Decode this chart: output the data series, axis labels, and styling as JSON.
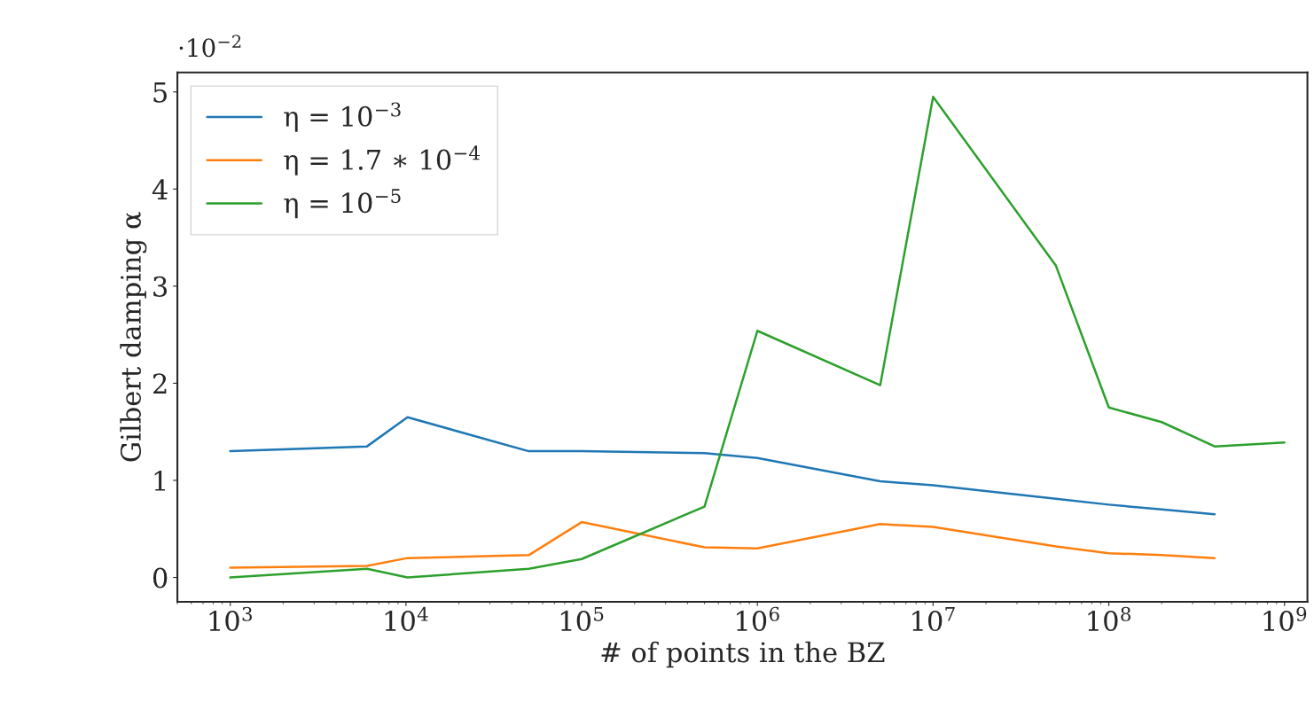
{
  "chart_data": {
    "type": "line",
    "xlabel": "# of points in the BZ",
    "ylabel": "Gilbert damping α",
    "annotations": [
      "·10$^{−2}$"
    ],
    "log": "x",
    "xlim": [
      500,
      1350000000
    ],
    "ylim": [
      -0.25,
      5.2
    ],
    "xticks": [
      {
        "value": 1000,
        "label": "10$^{3}$"
      },
      {
        "value": 10000,
        "label": "10$^{4}$"
      },
      {
        "value": 100000,
        "label": "10$^{5}$"
      },
      {
        "value": 1000000,
        "label": "10$^{6}$"
      },
      {
        "value": 10000000,
        "label": "10$^{7}$"
      },
      {
        "value": 100000000,
        "label": "10$^{8}$"
      },
      {
        "value": 1000000000,
        "label": "10$^{9}$"
      }
    ],
    "yticks": [
      0,
      1,
      2,
      3,
      4,
      5
    ],
    "grid": false,
    "legend": "top left",
    "marker": "none",
    "line_style": "solid",
    "series": [
      {
        "name": "η = 10$^{−3}$",
        "color": "#1f77b4",
        "x": [
          1000,
          6000,
          10200,
          50000,
          100000,
          500000,
          1000000,
          5000000,
          10000000,
          50000000,
          100000000,
          200000000,
          400000000
        ],
        "values": [
          1.3,
          1.35,
          1.65,
          1.3,
          1.3,
          1.28,
          1.23,
          0.99,
          0.95,
          0.81,
          0.75,
          0.7,
          0.65
        ]
      },
      {
        "name": "η = 1.7 ∗ 10$^{−4}$",
        "color": "#ff7f0e",
        "x": [
          1000,
          6000,
          10200,
          50000,
          100000,
          500000,
          1000000,
          5000000,
          10000000,
          50000000,
          100000000,
          200000000,
          400000000
        ],
        "values": [
          0.1,
          0.12,
          0.2,
          0.23,
          0.57,
          0.31,
          0.3,
          0.55,
          0.52,
          0.32,
          0.25,
          0.23,
          0.2
        ]
      },
      {
        "name": "η = 10$^{−5}$",
        "color": "#2ca02c",
        "x": [
          1000,
          6000,
          10200,
          50000,
          100000,
          500000,
          1000000,
          5000000,
          10000000,
          50000000,
          100000000,
          200000000,
          400000000,
          1000000000
        ],
        "values": [
          0.0,
          0.09,
          0.0,
          0.09,
          0.19,
          0.73,
          2.54,
          1.98,
          4.95,
          3.21,
          1.75,
          1.6,
          1.35,
          1.39
        ]
      }
    ]
  }
}
